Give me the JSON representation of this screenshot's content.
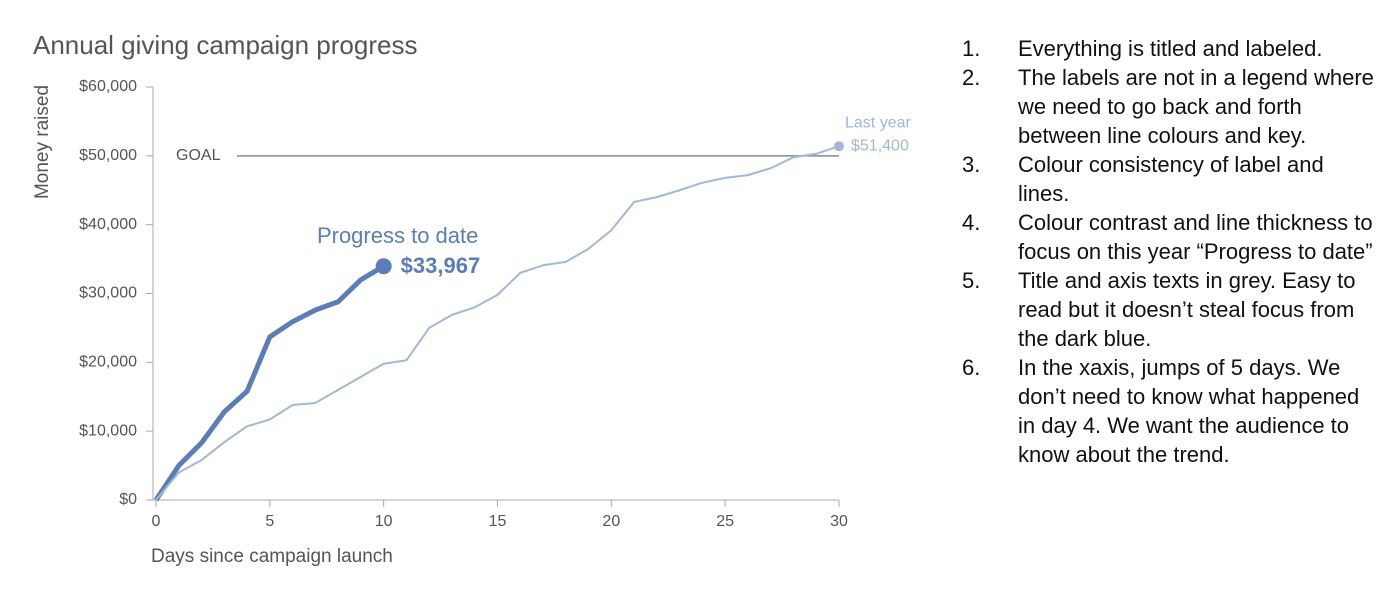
{
  "chart_data": {
    "type": "line",
    "title": "Annual giving campaign progress",
    "x_label": "Days since campaign launch",
    "y_label": "Money raised",
    "x": [
      0,
      1,
      2,
      3,
      4,
      5,
      6,
      7,
      8,
      9,
      10,
      11,
      12,
      13,
      14,
      15,
      16,
      17,
      18,
      19,
      20,
      21,
      22,
      23,
      24,
      25,
      26,
      27,
      28,
      29,
      30
    ],
    "series": [
      {
        "name": "Progress to date",
        "color": "#5b7db8",
        "values": [
          0,
          5000,
          8300,
          12800,
          15800,
          23700,
          25900,
          27600,
          28800,
          32000,
          33967,
          null,
          null,
          null,
          null,
          null,
          null,
          null,
          null,
          null,
          null,
          null,
          null,
          null,
          null,
          null,
          null,
          null,
          null,
          null,
          null
        ],
        "value_labels": [
          null,
          null,
          null,
          null,
          null,
          null,
          null,
          null,
          null,
          null,
          "$33,967",
          null,
          null,
          null,
          null,
          null,
          null,
          null,
          null,
          null,
          null,
          null,
          null,
          null,
          null,
          null,
          null,
          null,
          null,
          null,
          null
        ]
      },
      {
        "name": "Last year",
        "color": "#a3b7d9",
        "values": [
          0,
          4000,
          5800,
          8400,
          10700,
          11700,
          13800,
          14100,
          16000,
          17900,
          19800,
          20300,
          25000,
          26900,
          28000,
          29800,
          33000,
          34100,
          34600,
          36500,
          39200,
          43300,
          44000,
          45000,
          46100,
          46800,
          47200,
          48200,
          49800,
          50300,
          51400
        ],
        "value_labels": [
          null,
          null,
          null,
          null,
          null,
          null,
          null,
          null,
          null,
          null,
          null,
          null,
          null,
          null,
          null,
          null,
          null,
          null,
          null,
          null,
          null,
          null,
          null,
          null,
          null,
          null,
          null,
          null,
          null,
          null,
          "$51,400"
        ]
      }
    ],
    "goal": {
      "value": 50000,
      "label": "GOAL"
    },
    "xlim": [
      0,
      30
    ],
    "xticks": [
      0,
      5,
      10,
      15,
      20,
      25,
      30
    ],
    "ylim": [
      0,
      60000
    ],
    "yticks": [
      {
        "value": 0,
        "label": "$0"
      },
      {
        "value": 10000,
        "label": "$10,000"
      },
      {
        "value": 20000,
        "label": "$20,000"
      },
      {
        "value": 30000,
        "label": "$30,000"
      },
      {
        "value": 40000,
        "label": "$40,000"
      },
      {
        "value": 50000,
        "label": "$50,000"
      },
      {
        "value": 60000,
        "label": "$60,000"
      }
    ],
    "grid": false
  },
  "notes": [
    {
      "number": "1.",
      "text": "Everything is titled and labeled."
    },
    {
      "number": "2.",
      "text": "The labels are not in a legend where we need to go back and forth between line colours and key."
    },
    {
      "number": "3.",
      "text": "Colour consistency of label and lines."
    },
    {
      "number": "4.",
      "text": "Colour contrast and line thickness to focus on this year “Progress to date”"
    },
    {
      "number": "5.",
      "text": "Title and axis texts in grey. Easy to read but it doesn’t steal focus from the dark blue."
    },
    {
      "number": "6.",
      "text": "In the xaxis, jumps of 5 days. We don’t need to know what happened in day 4. We want the audience to know about the trend."
    }
  ]
}
